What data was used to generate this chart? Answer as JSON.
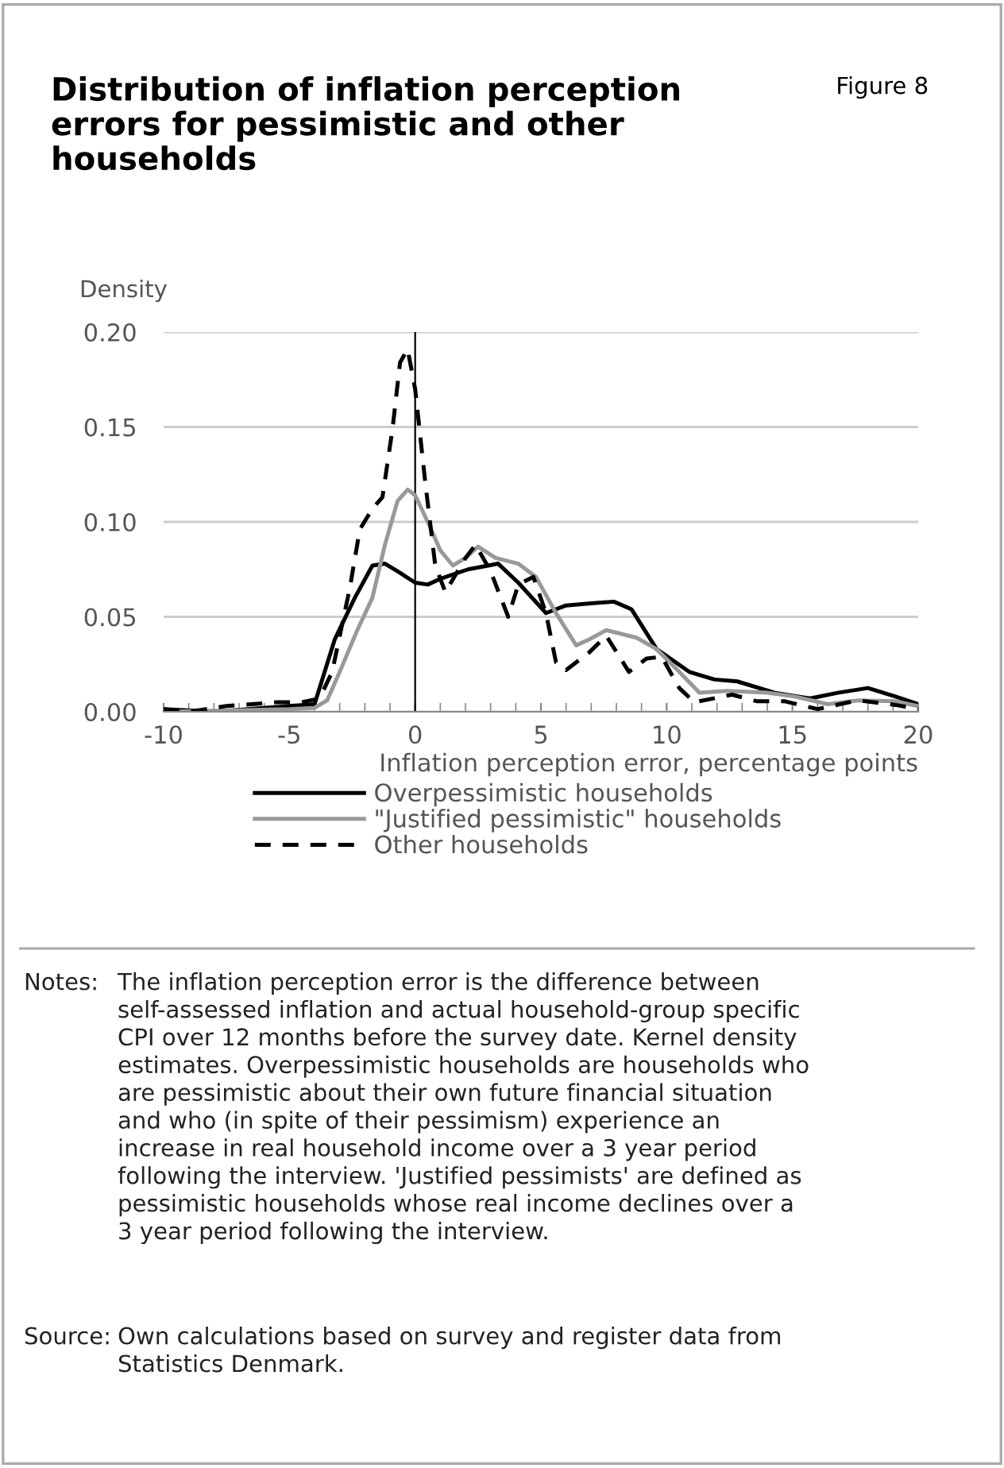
{
  "chart_data": {
    "type": "line",
    "title": "Distribution of inflation perception\nerrors for pessimistic and other\nhouseholds",
    "ylabel": "Density",
    "xlabel": "Inflation perception error, percentage points",
    "annotations": [
      "Figure 8",
      "Notes:",
      "The inflation perception error is the difference between\nself-assessed inflation and actual household-group specific\nCPI over 12 months before the survey date. Kernel density\nestimates. Overpessimistic households are households who\nare pessimistic about their own future financial situation\nand who (in spite of their pessimism) experience an\nincrease in real household income over a 3 year period\nfollowing the interview. 'Justified pessimists' are defined as\npessimistic households whose real income declines over a\n3 year period following the interview.",
      "Source:",
      "Own calculations based on survey and register data from\nStatistics Denmark."
    ],
    "xlim": [
      -10,
      20
    ],
    "xticks": [
      -10,
      -5,
      0,
      5,
      10,
      15,
      20
    ],
    "ylim": [
      0,
      0.2
    ],
    "yticks": [
      {
        "value": 0,
        "label": "0.00"
      },
      {
        "value": 0.05,
        "label": "0.05"
      },
      {
        "value": 0.1,
        "label": "0.10"
      },
      {
        "value": 0.15,
        "label": "0.15"
      },
      {
        "value": 0.2,
        "label": "0.20"
      }
    ],
    "grid": "y",
    "legend": "bottom",
    "ref_lines": [
      {
        "axis": "x",
        "value": 0,
        "color": "#000000"
      }
    ],
    "series": [
      {
        "name": "Overpessimistic households",
        "color": "#000000",
        "line_style": "solid",
        "x": [
          -10,
          -8,
          -5,
          -4,
          -3.2,
          -2.4,
          -1.7,
          -1.2,
          -0.7,
          0,
          0.5,
          1.0,
          2.1,
          2.9,
          3.3,
          4.1,
          5.2,
          6.0,
          6.9,
          7.9,
          8.6,
          9.6,
          10.9,
          11.9,
          12.8,
          14.3,
          15.7,
          16.8,
          18.0,
          19.1,
          20
        ],
        "values": [
          0.0014,
          0.0,
          0.003,
          0.004,
          0.038,
          0.06,
          0.077,
          0.078,
          0.074,
          0.068,
          0.067,
          0.07,
          0.075,
          0.077,
          0.078,
          0.068,
          0.052,
          0.056,
          0.057,
          0.058,
          0.054,
          0.033,
          0.021,
          0.017,
          0.016,
          0.01,
          0.007,
          0.01,
          0.0125,
          0.008,
          0.004
        ]
      },
      {
        "name": "\"Justified pessimistic\" households",
        "color": "#999999",
        "line_style": "solid",
        "x": [
          -10,
          -5,
          -4,
          -3.5,
          -3,
          -2.3,
          -1.7,
          -1.2,
          -0.7,
          -0.3,
          0,
          0.5,
          1.0,
          1.5,
          2.0,
          2.5,
          3.2,
          4.1,
          4.8,
          5.6,
          6.4,
          6.9,
          7.6,
          8.8,
          9.6,
          10.5,
          11.3,
          12.4,
          14.0,
          15.1,
          16.4,
          17.6,
          19.1,
          20
        ],
        "values": [
          0.0,
          0.0014,
          0.002,
          0.006,
          0.021,
          0.043,
          0.06,
          0.088,
          0.111,
          0.117,
          0.114,
          0.1,
          0.085,
          0.077,
          0.081,
          0.087,
          0.081,
          0.078,
          0.071,
          0.052,
          0.035,
          0.038,
          0.043,
          0.039,
          0.033,
          0.021,
          0.01,
          0.011,
          0.01,
          0.008,
          0.004,
          0.006,
          0.0055,
          0.003
        ]
      },
      {
        "name": "Other households",
        "color": "#000000",
        "line_style": "dashed",
        "x": [
          -10,
          -9,
          -7.5,
          -5.5,
          -4.5,
          -3.8,
          -3.3,
          -2.6,
          -2.2,
          -1.7,
          -1.3,
          -0.9,
          -0.6,
          -0.3,
          0,
          0.4,
          0.8,
          1.2,
          2.0,
          2.4,
          3.0,
          3.7,
          4.1,
          4.7,
          5.2,
          5.6,
          6.0,
          6.9,
          7.6,
          8.5,
          9.2,
          9.8,
          10.5,
          11.1,
          12.6,
          13.6,
          14.7,
          16.0,
          17.6,
          19.1,
          20
        ],
        "values": [
          0.0014,
          0.0,
          0.003,
          0.005,
          0.005,
          0.007,
          0.021,
          0.065,
          0.096,
          0.107,
          0.113,
          0.149,
          0.184,
          0.191,
          0.17,
          0.121,
          0.077,
          0.063,
          0.081,
          0.088,
          0.074,
          0.05,
          0.067,
          0.071,
          0.052,
          0.026,
          0.022,
          0.031,
          0.04,
          0.021,
          0.028,
          0.029,
          0.0125,
          0.005,
          0.009,
          0.0055,
          0.0055,
          0.0014,
          0.006,
          0.0036,
          0.0014
        ]
      }
    ]
  }
}
